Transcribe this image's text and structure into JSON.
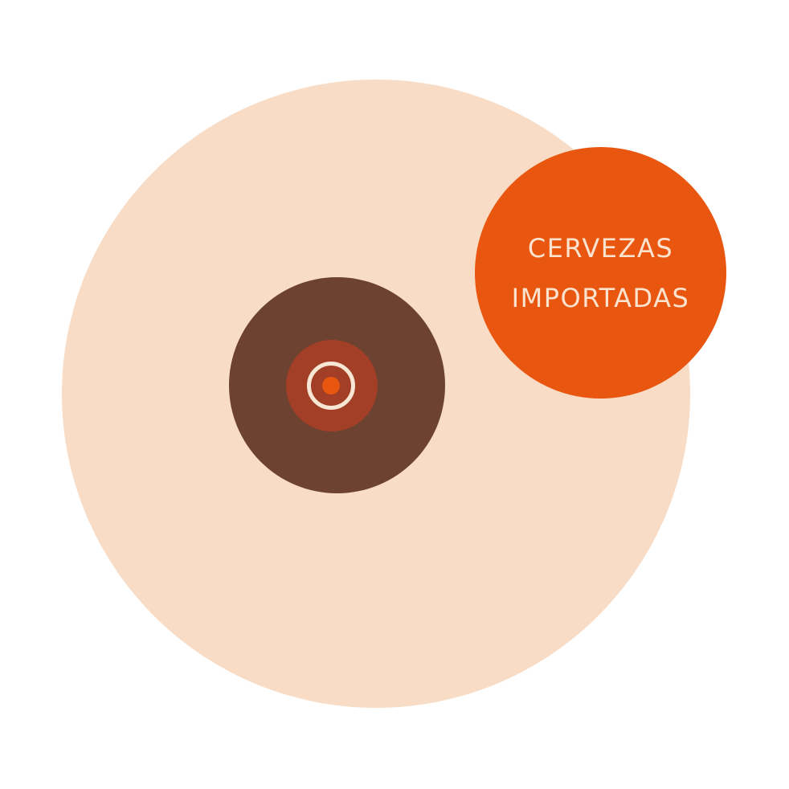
{
  "colors": {
    "background": "#ffffff",
    "peach": "#f8dcc5",
    "brown": "#6d4230",
    "rust": "#a33f27",
    "cream": "#f6e6d3",
    "orange": "#e8560f",
    "badge_text": "#fbe3cf"
  },
  "badge": {
    "line1": "CERVEZAS",
    "line2": "IMPORTADAS"
  }
}
